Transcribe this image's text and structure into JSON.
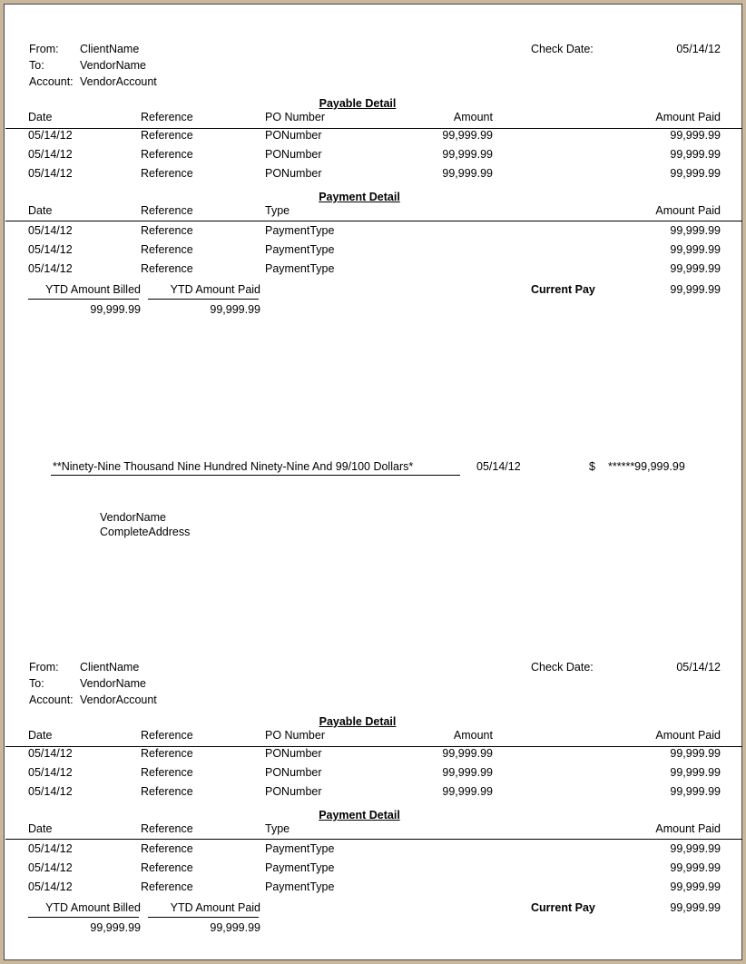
{
  "stub": {
    "from_label": "From:",
    "from_value": "ClientName",
    "to_label": "To:",
    "to_value": "VendorName",
    "account_label": "Account:",
    "account_value": "VendorAccount",
    "check_date_label": "Check Date:",
    "check_date_value": "05/14/12",
    "payable": {
      "title": "Payable Detail",
      "headers": [
        "Date",
        "Reference",
        "PO Number",
        "Amount",
        "Amount Paid"
      ],
      "rows": [
        [
          "05/14/12",
          "Reference",
          "PONumber",
          "99,999.99",
          "99,999.99"
        ],
        [
          "05/14/12",
          "Reference",
          "PONumber",
          "99,999.99",
          "99,999.99"
        ],
        [
          "05/14/12",
          "Reference",
          "PONumber",
          "99,999.99",
          "99,999.99"
        ]
      ]
    },
    "payment": {
      "title": "Payment Detail",
      "headers": [
        "Date",
        "Reference",
        "Type",
        "Amount Paid"
      ],
      "rows": [
        [
          "05/14/12",
          "Reference",
          "PaymentType",
          "99,999.99"
        ],
        [
          "05/14/12",
          "Reference",
          "PaymentType",
          "99,999.99"
        ],
        [
          "05/14/12",
          "Reference",
          "PaymentType",
          "99,999.99"
        ]
      ]
    },
    "ytd_billed_label": "YTD Amount Billed",
    "ytd_billed_value": "99,999.99",
    "ytd_paid_label": "YTD Amount Paid",
    "ytd_paid_value": "99,999.99",
    "current_pay_label": "Current Pay",
    "current_pay_value": "99,999.99"
  },
  "check": {
    "amount_words": "**Ninety-Nine Thousand Nine Hundred Ninety-Nine And 99/100 Dollars*",
    "date": "05/14/12",
    "currency_symbol": "$",
    "amount": "******99,999.99",
    "payee_name": "VendorName",
    "payee_address": "CompleteAddress"
  },
  "colors": {
    "frame": "#c9b79c",
    "paper": "#ffffff"
  }
}
